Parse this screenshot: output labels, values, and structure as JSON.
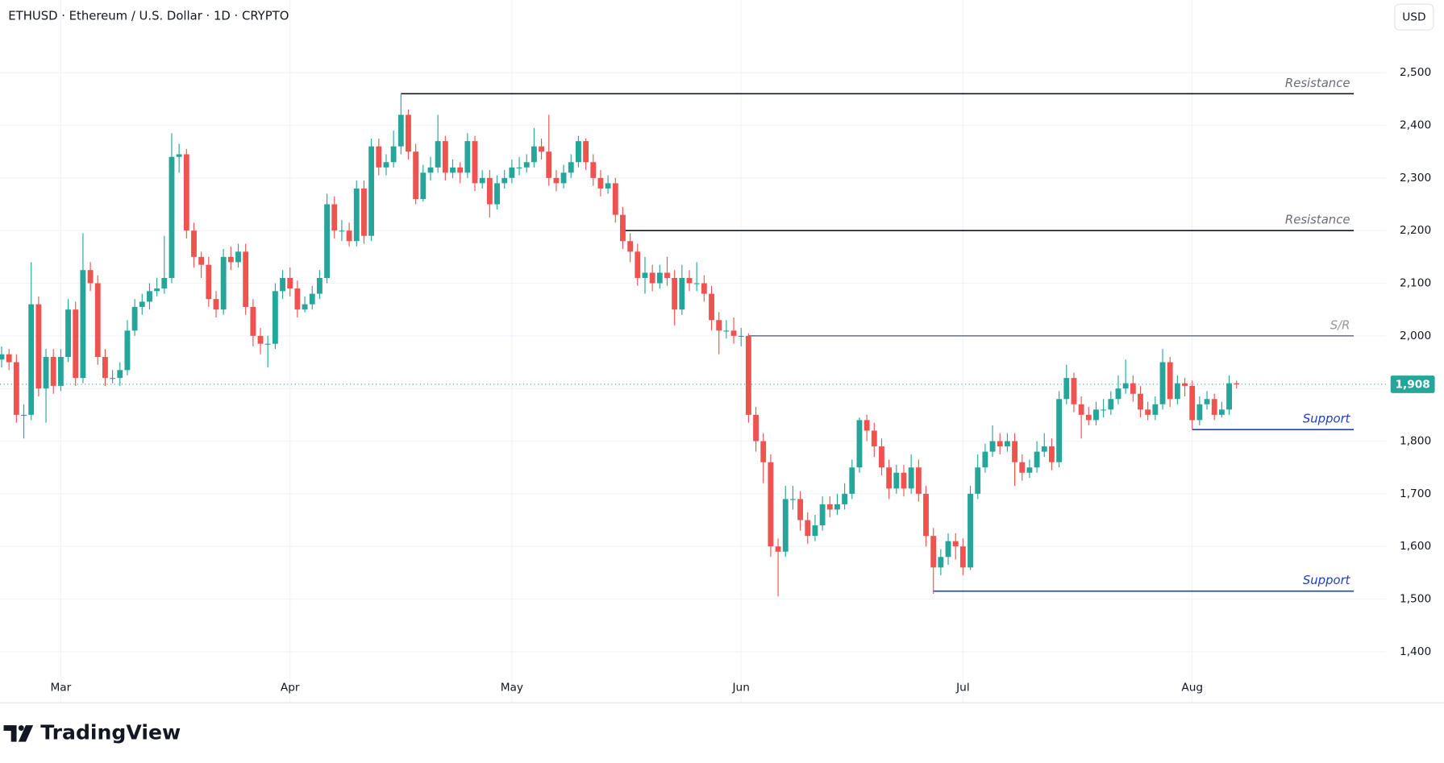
{
  "chart_data": {
    "type": "candlestick",
    "title": "ETHUSD · Ethereum / U.S. Dollar · 1D · CRYPTO",
    "currency_button": "USD",
    "brand": "TradingView",
    "up_color": "#26a69a",
    "down_color": "#ef5350",
    "grid": true,
    "ylim": [
      1304,
      2638
    ],
    "yticks": [
      {
        "value": 1400,
        "label": "1,400"
      },
      {
        "value": 1500,
        "label": "1,500"
      },
      {
        "value": 1600,
        "label": "1,600"
      },
      {
        "value": 1700,
        "label": "1,700"
      },
      {
        "value": 1800,
        "label": "1,800"
      },
      {
        "value": 1900,
        "label": "1,900"
      },
      {
        "value": 2000,
        "label": "2,000"
      },
      {
        "value": 2100,
        "label": "2,100"
      },
      {
        "value": 2200,
        "label": "2,200"
      },
      {
        "value": 2300,
        "label": "2,300"
      },
      {
        "value": 2400,
        "label": "2,400"
      },
      {
        "value": 2500,
        "label": "2,500"
      }
    ],
    "last_price": {
      "value": 1908,
      "label": "1,908"
    },
    "levels": [
      {
        "label": "Resistance",
        "value": 2460,
        "color": "#131722",
        "label_color": "#6a6d78"
      },
      {
        "label": "Resistance",
        "value": 2200,
        "color": "#131722",
        "label_color": "#6a6d78"
      },
      {
        "label": "S/R",
        "value": 2000,
        "color": "#787b86",
        "label_color": "#9598a1"
      },
      {
        "label": "Support",
        "value": 1822,
        "color": "#1e3fbf",
        "label_color": "#1e3fbf"
      },
      {
        "label": "Support",
        "value": 1515,
        "color": "#1e3fbf",
        "label_color": "#1e3fbf"
      }
    ],
    "categories": [
      null,
      null,
      null,
      null,
      null,
      null,
      null,
      null,
      "Mar",
      null,
      null,
      null,
      null,
      null,
      null,
      null,
      null,
      null,
      null,
      null,
      null,
      null,
      null,
      null,
      null,
      null,
      null,
      null,
      null,
      null,
      null,
      null,
      null,
      null,
      null,
      null,
      null,
      null,
      null,
      "Apr",
      null,
      null,
      null,
      null,
      null,
      null,
      null,
      null,
      null,
      null,
      null,
      null,
      null,
      null,
      null,
      null,
      null,
      null,
      null,
      null,
      null,
      null,
      null,
      null,
      null,
      null,
      null,
      null,
      null,
      "May",
      null,
      null,
      null,
      null,
      null,
      null,
      null,
      null,
      null,
      null,
      null,
      null,
      null,
      null,
      null,
      null,
      null,
      null,
      null,
      null,
      null,
      null,
      null,
      null,
      null,
      null,
      null,
      null,
      null,
      null,
      "Jun",
      null,
      null,
      null,
      null,
      null,
      null,
      null,
      null,
      null,
      null,
      null,
      null,
      null,
      null,
      null,
      null,
      null,
      null,
      null,
      null,
      null,
      null,
      null,
      null,
      null,
      null,
      null,
      null,
      null,
      "Jul",
      null,
      null,
      null,
      null,
      null,
      null,
      null,
      null,
      null,
      null,
      null,
      null,
      null,
      null,
      null,
      null,
      null,
      null,
      null,
      null,
      null,
      null,
      null,
      null,
      null,
      null,
      null,
      null,
      null,
      null,
      "Aug",
      null,
      null,
      null,
      null,
      null,
      null
    ],
    "open": [
      1955,
      1965,
      1950,
      1850,
      1850,
      2060,
      1900,
      1960,
      1905,
      1960,
      2050,
      1920,
      2125,
      2100,
      1960,
      1920,
      1920,
      1935,
      2010,
      2055,
      2065,
      2085,
      2090,
      2110,
      2340,
      2345,
      2200,
      2150,
      2135,
      2070,
      2050,
      2150,
      2140,
      2160,
      2055,
      2000,
      1985,
      1985,
      2085,
      2110,
      2090,
      2050,
      2060,
      2080,
      2110,
      2250,
      2200,
      2200,
      2180,
      2280,
      2190,
      2360,
      2320,
      2330,
      2360,
      2420,
      2350,
      2260,
      2310,
      2320,
      2370,
      2310,
      2320,
      2310,
      2370,
      2290,
      2300,
      2250,
      2290,
      2300,
      2320,
      2320,
      2330,
      2360,
      2350,
      2300,
      2290,
      2310,
      2330,
      2370,
      2330,
      2300,
      2280,
      2290,
      2230,
      2180,
      2160,
      2110,
      2120,
      2100,
      2120,
      2110,
      2050,
      2110,
      2100,
      2100,
      2080,
      2030,
      2010,
      2010,
      2000,
      2000,
      1850,
      1800,
      1760,
      1600,
      1590,
      1690,
      1690,
      1650,
      1620,
      1640,
      1680,
      1670,
      1680,
      1700,
      1750,
      1840,
      1820,
      1790,
      1750,
      1710,
      1740,
      1710,
      1750,
      1700,
      1620,
      1560,
      1580,
      1610,
      1600,
      1560,
      1700,
      1750,
      1780,
      1800,
      1790,
      1800,
      1760,
      1740,
      1750,
      1780,
      1790,
      1760,
      1880,
      1920,
      1870,
      1850,
      1840,
      1860,
      1860,
      1880,
      1900,
      1910,
      1890,
      1860,
      1850,
      1870,
      1950,
      1880,
      1910,
      1905,
      1840,
      1870,
      1880,
      1850,
      1860,
      1910
    ],
    "high": [
      1980,
      1975,
      1965,
      1870,
      2140,
      2075,
      1975,
      1975,
      1975,
      2070,
      2065,
      2195,
      2140,
      2115,
      1975,
      1935,
      1950,
      2030,
      2070,
      2080,
      2100,
      2110,
      2190,
      2385,
      2365,
      2355,
      2215,
      2160,
      2150,
      2085,
      2165,
      2170,
      2175,
      2175,
      2070,
      2015,
      2000,
      2100,
      2125,
      2130,
      2105,
      2075,
      2095,
      2125,
      2270,
      2265,
      2220,
      2215,
      2295,
      2295,
      2375,
      2375,
      2345,
      2390,
      2460,
      2430,
      2365,
      2325,
      2340,
      2420,
      2380,
      2335,
      2330,
      2385,
      2380,
      2315,
      2315,
      2305,
      2315,
      2335,
      2340,
      2345,
      2395,
      2375,
      2420,
      2315,
      2325,
      2345,
      2380,
      2375,
      2345,
      2315,
      2305,
      2300,
      2245,
      2195,
      2175,
      2150,
      2135,
      2135,
      2150,
      2125,
      2135,
      2125,
      2140,
      2115,
      2095,
      2045,
      2030,
      2035,
      2015,
      2005,
      1865,
      1815,
      1775,
      1615,
      1715,
      1715,
      1705,
      1665,
      1660,
      1695,
      1695,
      1700,
      1720,
      1765,
      1845,
      1850,
      1835,
      1805,
      1765,
      1755,
      1755,
      1775,
      1765,
      1715,
      1635,
      1595,
      1625,
      1625,
      1615,
      1715,
      1775,
      1795,
      1830,
      1815,
      1815,
      1815,
      1775,
      1765,
      1800,
      1815,
      1805,
      1895,
      1945,
      1930,
      1885,
      1865,
      1875,
      1880,
      1895,
      1925,
      1955,
      1925,
      1905,
      1875,
      1885,
      1975,
      1960,
      1925,
      1920,
      1915,
      1885,
      1895,
      1890,
      1875,
      1925,
      1915
    ],
    "low": [
      1940,
      1935,
      1835,
      1805,
      1840,
      1885,
      1835,
      1890,
      1895,
      1950,
      1905,
      1910,
      2085,
      1945,
      1905,
      1910,
      1905,
      1925,
      2000,
      2040,
      2050,
      2075,
      2080,
      2100,
      2310,
      2185,
      2130,
      2110,
      2055,
      2035,
      2040,
      2125,
      2130,
      2040,
      1980,
      1965,
      1940,
      1975,
      2070,
      2075,
      2035,
      2045,
      2050,
      2070,
      2100,
      2185,
      2180,
      2170,
      2170,
      2175,
      2180,
      2305,
      2305,
      2320,
      2345,
      2335,
      2250,
      2255,
      2295,
      2310,
      2295,
      2300,
      2290,
      2300,
      2275,
      2280,
      2225,
      2240,
      2280,
      2290,
      2305,
      2310,
      2320,
      2335,
      2285,
      2275,
      2280,
      2300,
      2320,
      2315,
      2285,
      2265,
      2270,
      2215,
      2165,
      2140,
      2095,
      2080,
      2085,
      2090,
      2095,
      2020,
      2040,
      2085,
      2085,
      2065,
      2010,
      1965,
      1995,
      1985,
      1980,
      1835,
      1780,
      1720,
      1580,
      1505,
      1580,
      1670,
      1630,
      1605,
      1610,
      1630,
      1655,
      1660,
      1670,
      1690,
      1740,
      1800,
      1770,
      1735,
      1690,
      1700,
      1695,
      1700,
      1685,
      1600,
      1510,
      1545,
      1565,
      1575,
      1545,
      1555,
      1690,
      1740,
      1770,
      1775,
      1780,
      1715,
      1725,
      1730,
      1740,
      1770,
      1745,
      1750,
      1870,
      1855,
      1805,
      1830,
      1830,
      1845,
      1850,
      1870,
      1890,
      1875,
      1845,
      1840,
      1840,
      1860,
      1865,
      1870,
      1885,
      1822,
      1830,
      1860,
      1840,
      1845,
      1850,
      1900
    ],
    "close": [
      1965,
      1950,
      1850,
      1850,
      2060,
      1900,
      1960,
      1905,
      1960,
      2050,
      1920,
      2125,
      2100,
      1960,
      1920,
      1920,
      1935,
      2010,
      2055,
      2065,
      2085,
      2090,
      2110,
      2340,
      2345,
      2200,
      2150,
      2135,
      2070,
      2050,
      2150,
      2140,
      2160,
      2055,
      2000,
      1985,
      1985,
      2085,
      2110,
      2090,
      2050,
      2060,
      2080,
      2110,
      2250,
      2200,
      2200,
      2180,
      2280,
      2190,
      2360,
      2320,
      2330,
      2360,
      2420,
      2350,
      2260,
      2310,
      2320,
      2370,
      2310,
      2320,
      2310,
      2370,
      2290,
      2300,
      2250,
      2290,
      2300,
      2320,
      2320,
      2330,
      2360,
      2350,
      2300,
      2290,
      2310,
      2330,
      2370,
      2330,
      2300,
      2280,
      2290,
      2230,
      2180,
      2160,
      2110,
      2120,
      2100,
      2120,
      2110,
      2050,
      2110,
      2100,
      2100,
      2080,
      2030,
      2010,
      2010,
      2000,
      2000,
      1850,
      1800,
      1760,
      1600,
      1590,
      1690,
      1690,
      1650,
      1620,
      1640,
      1680,
      1670,
      1680,
      1700,
      1750,
      1840,
      1820,
      1790,
      1750,
      1710,
      1740,
      1710,
      1750,
      1700,
      1620,
      1560,
      1580,
      1610,
      1600,
      1560,
      1700,
      1750,
      1780,
      1800,
      1790,
      1800,
      1760,
      1740,
      1750,
      1780,
      1790,
      1760,
      1880,
      1920,
      1870,
      1850,
      1840,
      1860,
      1860,
      1880,
      1900,
      1910,
      1890,
      1860,
      1850,
      1870,
      1950,
      1880,
      1910,
      1905,
      1840,
      1870,
      1880,
      1850,
      1860,
      1910,
      1908
    ]
  }
}
